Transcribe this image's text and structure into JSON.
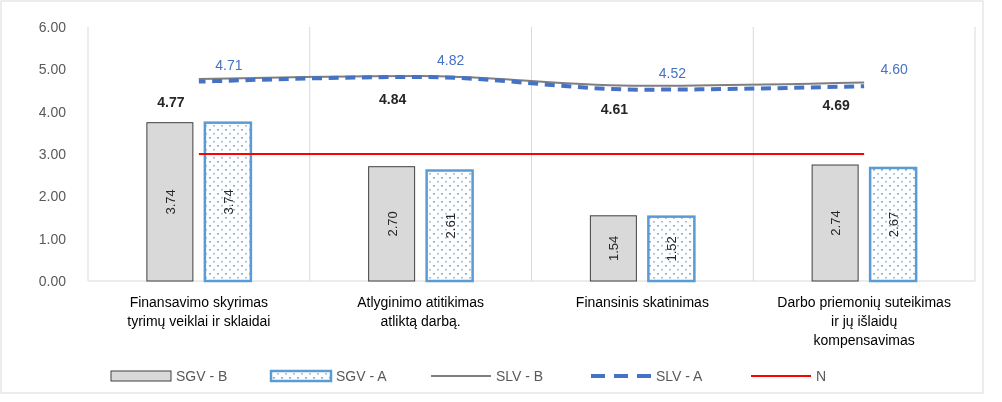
{
  "chart_data": {
    "type": "bar",
    "categories": [
      "Finansavimo skyrimas tyrimų veiklai ir sklaidai",
      "Atlyginimo atitikimas atliktą darbą.",
      "Finansinis skatinimas",
      "Darbo priemonių suteikimas ir jų išlaidų kompensavimas"
    ],
    "series": [
      {
        "name": "SGV - B",
        "color": "#d9d9d9",
        "values": [
          3.74,
          2.7,
          1.54,
          2.74
        ],
        "value_labels": [
          "3.74",
          "2.70",
          "1.54",
          "2.74"
        ]
      },
      {
        "name": "SGV - A",
        "color": "#5b9bd5",
        "values": [
          3.74,
          2.61,
          1.52,
          2.67
        ],
        "value_labels": [
          "3.74",
          "2.61",
          "1.52",
          "2.67"
        ]
      },
      {
        "name": "SLV - B",
        "type": "line",
        "color": "#7f7f7f",
        "line_style": "solid",
        "values": [
          4.77,
          4.84,
          4.61,
          4.69
        ],
        "value_labels": [
          "4.77",
          "4.84",
          "4.61",
          "4.69"
        ]
      },
      {
        "name": "SLV - A",
        "type": "line",
        "color": "#4472c4",
        "line_style": "dashed",
        "values": [
          4.71,
          4.82,
          4.52,
          4.6
        ],
        "value_labels": [
          "4.71",
          "4.82",
          "4.52",
          "4.60"
        ]
      },
      {
        "name": "N",
        "type": "line",
        "color": "#ff0000",
        "line_style": "solid",
        "values": [
          3,
          3,
          3,
          3
        ]
      }
    ],
    "ylim": [
      0,
      6
    ],
    "yticks": [
      {
        "value": 0,
        "label": "0.00"
      },
      {
        "value": 1,
        "label": "1.00"
      },
      {
        "value": 2,
        "label": "2.00"
      },
      {
        "value": 3,
        "label": "3.00"
      },
      {
        "value": 4,
        "label": "4.00"
      },
      {
        "value": 5,
        "label": "5.00"
      },
      {
        "value": 6,
        "label": "6.00"
      }
    ],
    "grid": "x",
    "legend": "bottom"
  }
}
